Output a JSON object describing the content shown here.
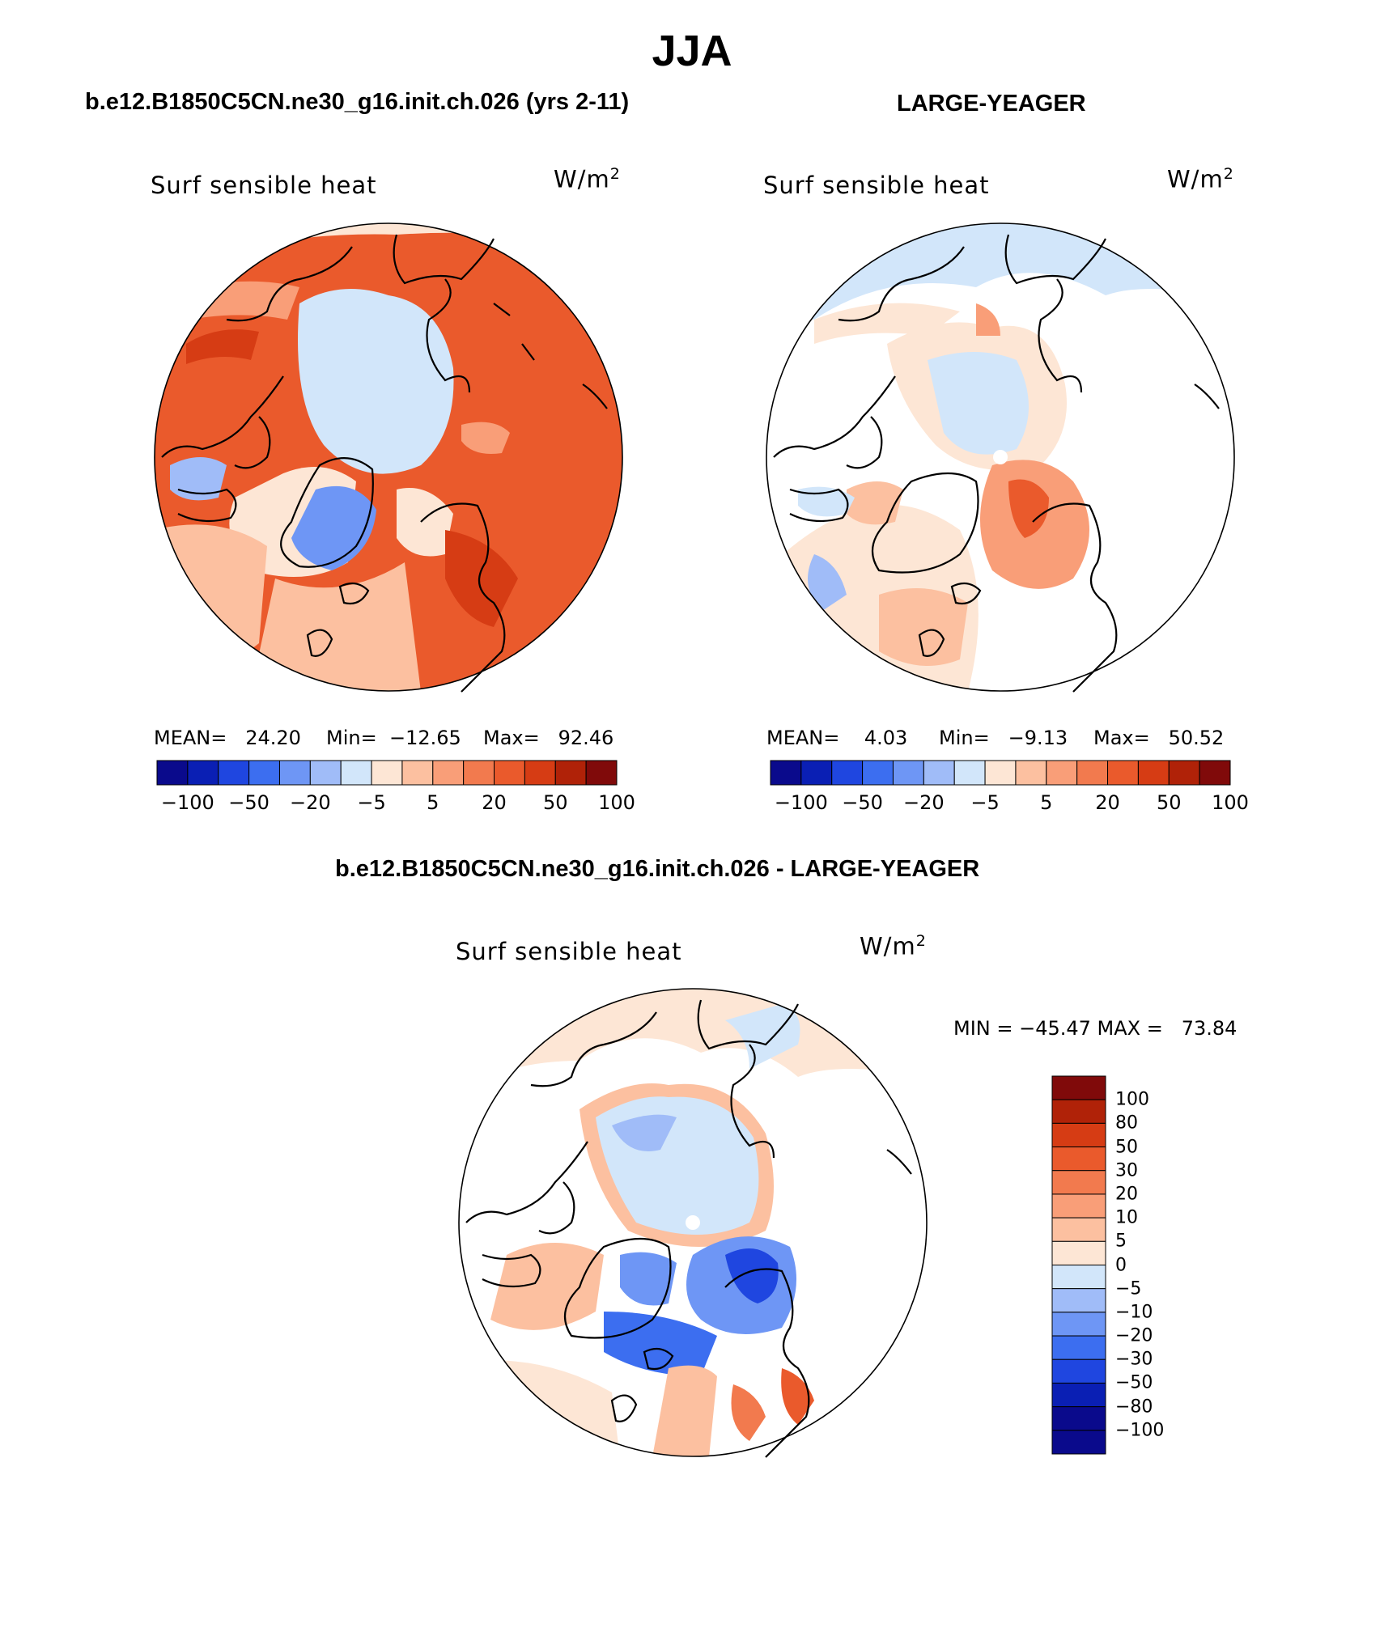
{
  "season": "JJA",
  "panels": [
    {
      "header": "b.e12.B1850C5CN.ne30_g16.init.ch.026 (yrs 2-11)",
      "field": "Surf sensible heat",
      "units": "W/m",
      "units_exp": "2",
      "mean_text": "MEAN=   24.20",
      "min_text": "Min=  −12.65",
      "max_text": "Max=   92.46",
      "colorbar_labels": [
        "−100",
        "−50",
        "−20",
        "−5",
        "5",
        "20",
        "50",
        "100"
      ]
    },
    {
      "header": "LARGE-YEAGER",
      "field": "Surf sensible heat",
      "units": "W/m",
      "units_exp": "2",
      "mean_text": "MEAN=    4.03",
      "min_text": "Min=   −9.13",
      "max_text": "Max=   50.52",
      "colorbar_labels": [
        "−100",
        "−50",
        "−20",
        "−5",
        "5",
        "20",
        "50",
        "100"
      ]
    }
  ],
  "diff": {
    "header": "b.e12.B1850C5CN.ne30_g16.init.ch.026 - LARGE-YEAGER",
    "field": "Surf sensible heat",
    "units": "W/m",
    "units_exp": "2",
    "minmax_text": "MIN = −45.47 MAX =   73.84",
    "colorbar_labels": [
      "100",
      "80",
      "50",
      "30",
      "20",
      "10",
      "5",
      "0",
      "−5",
      "−10",
      "−20",
      "−30",
      "−50",
      "−80",
      "−100"
    ]
  },
  "colors": {
    "scale": [
      "#0a0a8c",
      "#0a1fb4",
      "#1f46e0",
      "#3c6ef0",
      "#6e96f5",
      "#a0bcf8",
      "#d2e6fa",
      "#fde6d5",
      "#fcc0a0",
      "#f99e78",
      "#f27a4e",
      "#ea5a2c",
      "#d63c14",
      "#b02208",
      "#800a0a"
    ],
    "coast": "#000000"
  },
  "icons": {
    "map": "north-polar-stereographic-map"
  }
}
